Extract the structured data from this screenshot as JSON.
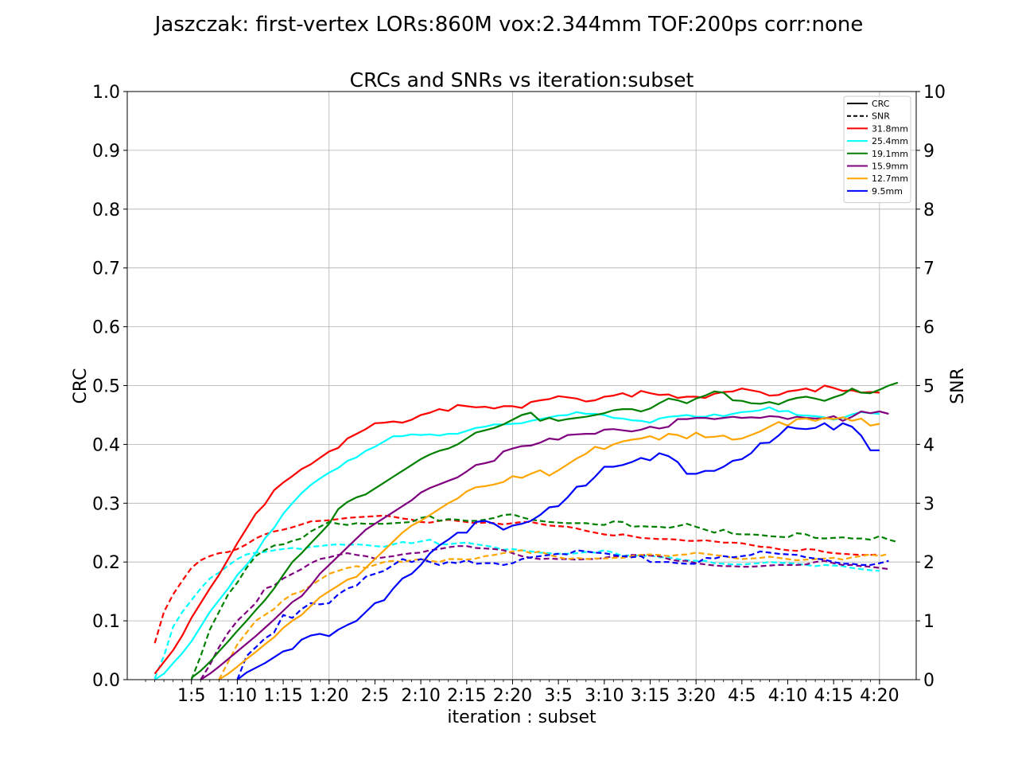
{
  "chart_data": {
    "type": "line",
    "suptitle": "Jaszczak: first-vertex LORs:860M vox:2.344mm TOF:200ps corr:none",
    "title": "CRCs and SNRs vs iteration:subset",
    "xlabel": "iteration : subset",
    "ylabel_left": "CRC",
    "ylabel_right": "SNR",
    "ylim_left": [
      0,
      1
    ],
    "ylim_right": [
      0,
      10
    ],
    "xlim": [
      -2,
      84
    ],
    "x_ticks": [
      {
        "x": 5,
        "label": "1:5"
      },
      {
        "x": 10,
        "label": "1:10"
      },
      {
        "x": 15,
        "label": "1:15"
      },
      {
        "x": 20,
        "label": "1:20"
      },
      {
        "x": 25,
        "label": "2:5"
      },
      {
        "x": 30,
        "label": "2:10"
      },
      {
        "x": 35,
        "label": "2:15"
      },
      {
        "x": 40,
        "label": "2:20"
      },
      {
        "x": 45,
        "label": "3:5"
      },
      {
        "x": 50,
        "label": "3:10"
      },
      {
        "x": 55,
        "label": "3:15"
      },
      {
        "x": 60,
        "label": "3:20"
      },
      {
        "x": 65,
        "label": "4:5"
      },
      {
        "x": 70,
        "label": "4:10"
      },
      {
        "x": 75,
        "label": "4:15"
      },
      {
        "x": 80,
        "label": "4:20"
      }
    ],
    "y_ticks_left": [
      "0.0",
      "0.1",
      "0.2",
      "0.3",
      "0.4",
      "0.5",
      "0.6",
      "0.7",
      "0.8",
      "0.9",
      "1.0"
    ],
    "y_ticks_right": [
      "0",
      "1",
      "2",
      "3",
      "4",
      "5",
      "6",
      "7",
      "8",
      "9",
      "10"
    ],
    "grid": true,
    "legend_position": "top-right",
    "legend_style_entries": [
      {
        "label": "CRC",
        "dash": "solid",
        "color": "#000000"
      },
      {
        "label": "SNR",
        "dash": "dashed",
        "color": "#000000"
      }
    ],
    "x_start": 1,
    "series": [
      {
        "name": "31.8mm",
        "color": "#ff0000",
        "crc": [
          0.01,
          0.03,
          0.05,
          0.075,
          0.105,
          0.13,
          0.155,
          0.178,
          0.205,
          0.232,
          0.257,
          0.282,
          0.298,
          0.322,
          0.335,
          0.346,
          0.358,
          0.366,
          0.377,
          0.388,
          0.394,
          0.41,
          0.418,
          0.426,
          0.436,
          0.437,
          0.439,
          0.437,
          0.442,
          0.45,
          0.454,
          0.46,
          0.457,
          0.467,
          0.465,
          0.463,
          0.464,
          0.461,
          0.465,
          0.465,
          0.462,
          0.472,
          0.475,
          0.477,
          0.482,
          0.48,
          0.478,
          0.473,
          0.475,
          0.481,
          0.483,
          0.487,
          0.481,
          0.491,
          0.487,
          0.484,
          0.485,
          0.479,
          0.481,
          0.481,
          0.479,
          0.486,
          0.489,
          0.49,
          0.495,
          0.492,
          0.489,
          0.483,
          0.484,
          0.49,
          0.492,
          0.495,
          0.49,
          0.5,
          0.496,
          0.491,
          0.492,
          0.488,
          0.489,
          0.488
        ],
        "snr": [
          0.62,
          1.15,
          1.45,
          1.68,
          1.9,
          2.03,
          2.1,
          2.15,
          2.17,
          2.22,
          2.3,
          2.4,
          2.47,
          2.52,
          2.55,
          2.59,
          2.64,
          2.69,
          2.7,
          2.71,
          2.73,
          2.75,
          2.76,
          2.77,
          2.78,
          2.79,
          2.77,
          2.74,
          2.72,
          2.68,
          2.67,
          2.7,
          2.72,
          2.7,
          2.68,
          2.66,
          2.67,
          2.66,
          2.64,
          2.66,
          2.68,
          2.68,
          2.65,
          2.62,
          2.61,
          2.6,
          2.57,
          2.53,
          2.5,
          2.47,
          2.45,
          2.47,
          2.44,
          2.41,
          2.4,
          2.39,
          2.39,
          2.38,
          2.36,
          2.36,
          2.37,
          2.35,
          2.33,
          2.33,
          2.32,
          2.29,
          2.26,
          2.25,
          2.22,
          2.2,
          2.19,
          2.22,
          2.21,
          2.17,
          2.15,
          2.14,
          2.13,
          2.12,
          2.12,
          2.13
        ]
      },
      {
        "name": "25.4mm",
        "color": "#00ffff",
        "crc": [
          0.0,
          0.01,
          0.028,
          0.045,
          0.065,
          0.09,
          0.115,
          0.135,
          0.155,
          0.178,
          0.195,
          0.215,
          0.24,
          0.258,
          0.282,
          0.3,
          0.317,
          0.331,
          0.342,
          0.352,
          0.36,
          0.372,
          0.378,
          0.389,
          0.396,
          0.405,
          0.414,
          0.414,
          0.417,
          0.416,
          0.417,
          0.415,
          0.418,
          0.418,
          0.423,
          0.428,
          0.43,
          0.434,
          0.434,
          0.435,
          0.436,
          0.44,
          0.443,
          0.446,
          0.449,
          0.45,
          0.455,
          0.452,
          0.452,
          0.45,
          0.445,
          0.444,
          0.441,
          0.44,
          0.437,
          0.444,
          0.447,
          0.448,
          0.45,
          0.447,
          0.447,
          0.451,
          0.448,
          0.452,
          0.455,
          0.456,
          0.458,
          0.463,
          0.456,
          0.457,
          0.45,
          0.449,
          0.448,
          0.446,
          0.442,
          0.445,
          0.451,
          0.455,
          0.453,
          0.452
        ],
        "snr": [
          0.02,
          0.4,
          0.9,
          1.15,
          1.35,
          1.55,
          1.72,
          1.82,
          1.94,
          2.05,
          2.13,
          2.16,
          2.17,
          2.2,
          2.22,
          2.24,
          2.22,
          2.26,
          2.27,
          2.29,
          2.3,
          2.29,
          2.3,
          2.29,
          2.27,
          2.26,
          2.3,
          2.34,
          2.32,
          2.35,
          2.38,
          2.3,
          2.3,
          2.32,
          2.33,
          2.3,
          2.28,
          2.25,
          2.21,
          2.22,
          2.2,
          2.18,
          2.16,
          2.15,
          2.14,
          2.14,
          2.15,
          2.17,
          2.16,
          2.2,
          2.16,
          2.1,
          2.12,
          2.1,
          2.11,
          2.08,
          2.08,
          2.05,
          2.03,
          2.02,
          2.02,
          1.98,
          1.97,
          1.96,
          1.96,
          1.97,
          1.98,
          2.0,
          1.99,
          1.98,
          1.97,
          1.95,
          1.93,
          1.95,
          1.94,
          1.93,
          1.9,
          1.88,
          1.86,
          1.85
        ]
      },
      {
        "name": "19.1mm",
        "color": "#008000",
        "crc": [
          null,
          null,
          null,
          null,
          0.003,
          0.015,
          0.03,
          0.048,
          0.065,
          0.083,
          0.1,
          0.118,
          0.135,
          0.155,
          0.178,
          0.2,
          0.215,
          0.232,
          0.248,
          0.265,
          0.29,
          0.302,
          0.31,
          0.315,
          0.325,
          0.335,
          0.345,
          0.355,
          0.365,
          0.375,
          0.383,
          0.389,
          0.393,
          0.4,
          0.41,
          0.42,
          0.424,
          0.428,
          0.434,
          0.442,
          0.45,
          0.454,
          0.44,
          0.445,
          0.44,
          0.443,
          0.445,
          0.447,
          0.45,
          0.453,
          0.458,
          0.46,
          0.46,
          0.456,
          0.461,
          0.47,
          0.478,
          0.475,
          0.47,
          0.478,
          0.483,
          0.49,
          0.488,
          0.475,
          0.474,
          0.47,
          0.469,
          0.472,
          0.468,
          0.475,
          0.479,
          0.481,
          0.478,
          0.474,
          0.48,
          0.485,
          0.495,
          0.488,
          0.487,
          0.493,
          0.5,
          0.505
        ],
        "snr": [
          null,
          null,
          null,
          null,
          0.0,
          0.4,
          0.85,
          1.15,
          1.45,
          1.65,
          1.9,
          2.1,
          2.2,
          2.28,
          2.3,
          2.36,
          2.4,
          2.52,
          2.6,
          2.68,
          2.65,
          2.63,
          2.66,
          2.65,
          2.65,
          2.65,
          2.66,
          2.67,
          2.68,
          2.75,
          2.78,
          2.7,
          2.73,
          2.72,
          2.7,
          2.7,
          2.72,
          2.75,
          2.8,
          2.81,
          2.76,
          2.72,
          2.7,
          2.68,
          2.67,
          2.66,
          2.66,
          2.66,
          2.64,
          2.63,
          2.69,
          2.68,
          2.6,
          2.61,
          2.6,
          2.6,
          2.58,
          2.61,
          2.65,
          2.6,
          2.55,
          2.5,
          2.55,
          2.48,
          2.47,
          2.47,
          2.46,
          2.44,
          2.43,
          2.42,
          2.49,
          2.47,
          2.41,
          2.4,
          2.41,
          2.42,
          2.4,
          2.4,
          2.38,
          2.44,
          2.38,
          2.34
        ]
      },
      {
        "name": "15.9mm",
        "color": "#800080",
        "crc": [
          null,
          null,
          null,
          null,
          null,
          0.0,
          0.01,
          0.022,
          0.035,
          0.048,
          0.061,
          0.074,
          0.088,
          0.102,
          0.117,
          0.132,
          0.142,
          0.16,
          0.18,
          0.195,
          0.21,
          0.225,
          0.24,
          0.255,
          0.265,
          0.275,
          0.285,
          0.295,
          0.305,
          0.318,
          0.326,
          0.332,
          0.338,
          0.344,
          0.354,
          0.365,
          0.368,
          0.372,
          0.388,
          0.393,
          0.397,
          0.398,
          0.403,
          0.41,
          0.408,
          0.416,
          0.417,
          0.418,
          0.418,
          0.425,
          0.426,
          0.424,
          0.422,
          0.425,
          0.43,
          0.427,
          0.43,
          0.443,
          0.443,
          0.445,
          0.445,
          0.443,
          0.445,
          0.447,
          0.445,
          0.446,
          0.445,
          0.448,
          0.447,
          0.443,
          0.447,
          0.445,
          0.444,
          0.444,
          0.448,
          0.44,
          0.447,
          0.456,
          0.453,
          0.456,
          0.452
        ],
        "snr": [
          null,
          null,
          null,
          null,
          null,
          0.0,
          0.25,
          0.55,
          0.8,
          1.0,
          1.15,
          1.3,
          1.55,
          1.6,
          1.72,
          1.8,
          1.88,
          1.98,
          2.05,
          2.08,
          2.12,
          2.15,
          2.12,
          2.1,
          2.06,
          2.08,
          2.1,
          2.13,
          2.15,
          2.16,
          2.2,
          2.22,
          2.25,
          2.27,
          2.27,
          2.24,
          2.23,
          2.22,
          2.2,
          2.15,
          2.1,
          2.07,
          2.05,
          2.06,
          2.05,
          2.05,
          2.04,
          2.05,
          2.05,
          2.07,
          2.1,
          2.09,
          2.12,
          2.12,
          2.11,
          2.1,
          2.05,
          2.02,
          2.02,
          1.98,
          1.96,
          1.94,
          1.93,
          1.93,
          1.92,
          1.92,
          1.93,
          1.94,
          1.95,
          1.95,
          1.95,
          1.96,
          2.0,
          2.02,
          1.98,
          1.95,
          1.95,
          1.93,
          1.92,
          1.9,
          1.88
        ]
      },
      {
        "name": "12.7mm",
        "color": "#ffa500",
        "crc": [
          null,
          null,
          null,
          null,
          null,
          null,
          null,
          0.0,
          0.01,
          0.022,
          0.035,
          0.047,
          0.06,
          0.072,
          0.088,
          0.1,
          0.11,
          0.125,
          0.14,
          0.15,
          0.16,
          0.17,
          0.175,
          0.19,
          0.205,
          0.22,
          0.235,
          0.25,
          0.262,
          0.27,
          0.28,
          0.29,
          0.3,
          0.308,
          0.32,
          0.327,
          0.329,
          0.332,
          0.336,
          0.346,
          0.343,
          0.35,
          0.356,
          0.347,
          0.356,
          0.366,
          0.376,
          0.384,
          0.396,
          0.392,
          0.4,
          0.405,
          0.408,
          0.41,
          0.414,
          0.408,
          0.418,
          0.416,
          0.41,
          0.42,
          0.412,
          0.413,
          0.415,
          0.408,
          0.41,
          0.416,
          0.422,
          0.43,
          0.438,
          0.432,
          0.443,
          0.444,
          0.44,
          0.445,
          0.443,
          0.446,
          0.44,
          0.444,
          0.432,
          0.435
        ],
        "snr": [
          null,
          null,
          null,
          null,
          null,
          null,
          null,
          0.0,
          0.3,
          0.6,
          0.8,
          1.0,
          1.1,
          1.2,
          1.35,
          1.45,
          1.5,
          1.6,
          1.7,
          1.8,
          1.85,
          1.9,
          1.93,
          1.9,
          1.95,
          2.0,
          2.02,
          2.0,
          2.03,
          2.05,
          2.02,
          2.0,
          2.05,
          2.05,
          2.04,
          2.06,
          2.1,
          2.12,
          2.15,
          2.18,
          2.2,
          2.15,
          2.18,
          2.12,
          2.08,
          2.05,
          2.07,
          2.05,
          2.06,
          2.06,
          2.07,
          2.07,
          2.1,
          2.12,
          2.13,
          2.12,
          2.1,
          2.12,
          2.13,
          2.16,
          2.14,
          2.12,
          2.1,
          2.07,
          2.05,
          2.06,
          2.07,
          2.09,
          2.07,
          2.05,
          2.03,
          2.04,
          2.05,
          2.06,
          2.07,
          2.04,
          2.08,
          2.1,
          2.13,
          2.1,
          2.14
        ]
      },
      {
        "name": "9.5mm",
        "color": "#0000ff",
        "crc": [
          null,
          null,
          null,
          null,
          null,
          null,
          null,
          null,
          null,
          0.0,
          0.012,
          0.02,
          0.028,
          0.038,
          0.048,
          0.052,
          0.068,
          0.075,
          0.078,
          0.074,
          0.085,
          0.093,
          0.1,
          0.115,
          0.13,
          0.135,
          0.155,
          0.172,
          0.18,
          0.195,
          0.215,
          0.228,
          0.238,
          0.25,
          0.25,
          0.268,
          0.27,
          0.265,
          0.255,
          0.262,
          0.265,
          0.27,
          0.28,
          0.293,
          0.295,
          0.31,
          0.328,
          0.33,
          0.345,
          0.362,
          0.362,
          0.365,
          0.37,
          0.377,
          0.373,
          0.385,
          0.38,
          0.37,
          0.35,
          0.35,
          0.355,
          0.355,
          0.362,
          0.372,
          0.375,
          0.385,
          0.402,
          0.403,
          0.415,
          0.43,
          0.427,
          0.426,
          0.428,
          0.436,
          0.425,
          0.436,
          0.43,
          0.415,
          0.39,
          0.39
        ],
        "snr": [
          null,
          null,
          null,
          null,
          null,
          null,
          null,
          null,
          null,
          0.0,
          0.4,
          0.55,
          0.7,
          0.8,
          1.1,
          1.05,
          1.2,
          1.3,
          1.28,
          1.3,
          1.45,
          1.55,
          1.6,
          1.75,
          1.8,
          1.85,
          1.95,
          2.05,
          2.0,
          2.05,
          2.0,
          1.95,
          2.0,
          1.98,
          2.03,
          1.97,
          1.98,
          1.98,
          1.95,
          1.98,
          2.05,
          2.08,
          2.1,
          2.12,
          2.14,
          2.13,
          2.2,
          2.18,
          2.16,
          2.15,
          2.12,
          2.1,
          2.08,
          2.1,
          2.0,
          2.0,
          2.0,
          1.98,
          1.97,
          1.97,
          2.07,
          2.06,
          2.1,
          2.08,
          2.1,
          2.12,
          2.18,
          2.16,
          2.14,
          2.13,
          2.12,
          2.08,
          2.06,
          2.04,
          2.0,
          1.97,
          1.97,
          1.95,
          1.95,
          1.98,
          2.02
        ]
      }
    ]
  }
}
